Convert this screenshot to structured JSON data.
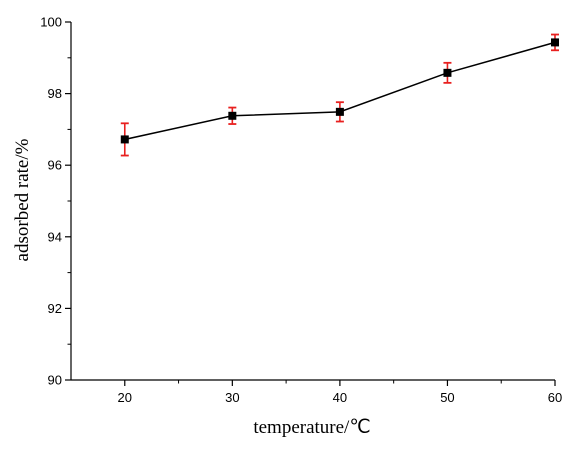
{
  "chart_data": {
    "type": "scatter",
    "xlabel": "temperature/℃",
    "ylabel": "adsorbed rate/%",
    "xlim": [
      15,
      60
    ],
    "ylim": [
      90,
      100
    ],
    "x_ticks": [
      20,
      30,
      40,
      50,
      60
    ],
    "y_ticks": [
      90,
      92,
      94,
      96,
      98,
      100
    ],
    "x_tick_labels": [
      "20",
      "30",
      "40",
      "50",
      "60"
    ],
    "y_tick_labels": [
      "90",
      "92",
      "94",
      "96",
      "98",
      "100"
    ],
    "grid": false,
    "line_connected": true,
    "series": [
      {
        "x": [
          20,
          30,
          40,
          50,
          60
        ],
        "y": [
          96.72,
          97.38,
          97.49,
          98.58,
          99.43
        ],
        "error": [
          0.45,
          0.23,
          0.27,
          0.28,
          0.22
        ]
      }
    ],
    "colors": {
      "line": "#000000",
      "marker": "#000000",
      "error_bar": "#e8201f"
    }
  }
}
